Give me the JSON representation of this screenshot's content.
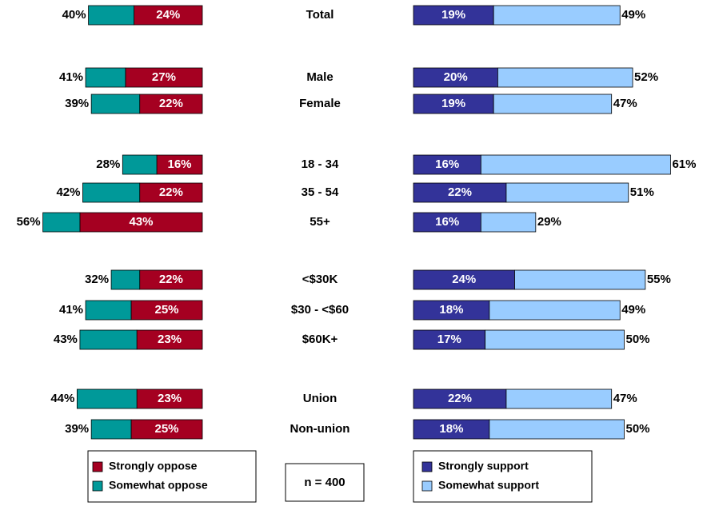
{
  "chart_data": {
    "type": "diverging_bar",
    "categories": [
      "Total",
      "Male",
      "Female",
      "18 - 34",
      "35 - 54",
      "55+",
      "<$30K",
      "$30 - <$60",
      "$60K+",
      "Union",
      "Non-union"
    ],
    "series": [
      {
        "name": "Strongly oppose",
        "color": "#a50021",
        "side": "left",
        "values": [
          24,
          27,
          22,
          16,
          22,
          43,
          22,
          25,
          23,
          23,
          25
        ],
        "value_labels": [
          "24%",
          "27%",
          "22%",
          "16%",
          "22%",
          "43%",
          "22%",
          "25%",
          "23%",
          "23%",
          "25%"
        ]
      },
      {
        "name": "Somewhat oppose",
        "color": "#009999",
        "side": "left",
        "values": [
          16,
          14,
          17,
          12,
          20,
          13,
          10,
          16,
          20,
          21,
          14
        ]
      },
      {
        "name": "Strongly support",
        "color": "#333399",
        "side": "right",
        "values": [
          19,
          20,
          19,
          16,
          22,
          16,
          24,
          18,
          17,
          22,
          18
        ],
        "value_labels": [
          "19%",
          "20%",
          "19%",
          "16%",
          "22%",
          "16%",
          "24%",
          "18%",
          "17%",
          "22%",
          "18%"
        ]
      },
      {
        "name": "Somewhat support",
        "color": "#99ccff",
        "side": "right",
        "values": [
          30,
          32,
          28,
          45,
          29,
          13,
          31,
          31,
          33,
          25,
          32
        ]
      }
    ],
    "oppose_total_labels": [
      "40%",
      "41%",
      "39%",
      "28%",
      "42%",
      "56%",
      "32%",
      "41%",
      "43%",
      "44%",
      "39%"
    ],
    "support_total_labels": [
      "49%",
      "52%",
      "47%",
      "61%",
      "51%",
      "29%",
      "55%",
      "49%",
      "50%",
      "47%",
      "50%"
    ],
    "note": "n = 400"
  }
}
